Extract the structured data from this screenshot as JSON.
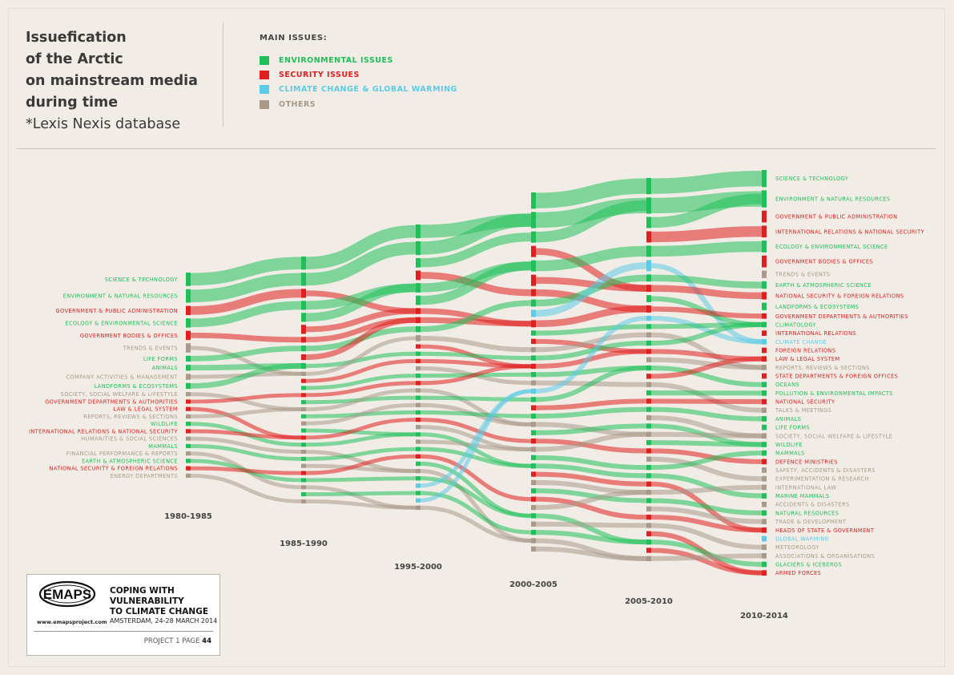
{
  "title_lines": [
    "Issuefication",
    "of the Arctic",
    "on mainstream media",
    "during time"
  ],
  "source": "*Lexis Nexis database",
  "legend": {
    "heading": "MAIN ISSUES:",
    "items": [
      {
        "label": "ENVIRONMENTAL ISSUES",
        "color": "#1fbf5a"
      },
      {
        "label": "SECURITY ISSUES",
        "color": "#e01f1f"
      },
      {
        "label": "CLIMATE CHANGE & GLOBAL WARMING",
        "color": "#5ccbe6"
      },
      {
        "label": "OTHERS",
        "color": "#a8998a"
      }
    ]
  },
  "colors": {
    "env": "#1fbf5a",
    "sec": "#e01f1f",
    "clim": "#5ccbe6",
    "oth": "#a8998a"
  },
  "chart_data": {
    "type": "alluvial",
    "periods": [
      "1980-1985",
      "1985-1990",
      "1995-2000",
      "2000-2005",
      "2005-2010",
      "2010-2014"
    ],
    "first_period_labels": [
      {
        "label": "SCIENCE & TECHNOLOGY",
        "cat": "env"
      },
      {
        "label": "ENVIRONMENT & NATURAL RESOURCES",
        "cat": "env"
      },
      {
        "label": "GOVERNMENT & PUBLIC ADMINISTRATION",
        "cat": "sec"
      },
      {
        "label": "ECOLOGY & ENVIRONMENTAL SCIENCE",
        "cat": "env"
      },
      {
        "label": "GOVERNMENT BODIES & OFFICES",
        "cat": "sec"
      },
      {
        "label": "TRENDS & EVENTS",
        "cat": "oth"
      },
      {
        "label": "LIFE FORMS",
        "cat": "env"
      },
      {
        "label": "ANIMALS",
        "cat": "env"
      },
      {
        "label": "COMPANY ACTIVITIES & MANAGEMENT",
        "cat": "oth"
      },
      {
        "label": "LANDFORMS & ECOSYSTEMS",
        "cat": "env"
      },
      {
        "label": "SOCIETY, SOCIAL WELFARE & LIFESTYLE",
        "cat": "oth"
      },
      {
        "label": "GOVERNMENT DEPARTMENTS & AUTHORITIES",
        "cat": "sec"
      },
      {
        "label": "LAW & LEGAL SYSTEM",
        "cat": "sec"
      },
      {
        "label": "REPORTS, REVIEWS & SECTIONS",
        "cat": "oth"
      },
      {
        "label": "WILDLIFE",
        "cat": "env"
      },
      {
        "label": "INTERNATIONAL RELATIONS & NATIONAL SECURITY",
        "cat": "sec"
      },
      {
        "label": "HUMANITIES & SOCIAL SCIENCES",
        "cat": "oth"
      },
      {
        "label": "MAMMALS",
        "cat": "env"
      },
      {
        "label": "FINANCIAL PERFORMANCE & REPORTS",
        "cat": "oth"
      },
      {
        "label": "EARTH & ATMOSPHERIC SCIENCE",
        "cat": "env"
      },
      {
        "label": "NATIONAL SECURITY & FOREIGN RELATIONS",
        "cat": "sec"
      },
      {
        "label": "ENERGY DEPARTMENTS",
        "cat": "oth"
      }
    ],
    "last_period_labels": [
      {
        "label": "SCIENCE & TECHNOLOGY",
        "cat": "env"
      },
      {
        "label": "ENVIRONMENT & NATURAL RESOURCES",
        "cat": "env"
      },
      {
        "label": "GOVERNMENT & PUBLIC ADMINISTRATION",
        "cat": "sec"
      },
      {
        "label": "INTERNATIONAL RELATIONS & NATIONAL SECURITY",
        "cat": "sec"
      },
      {
        "label": "ECOLOGY & ENVIRONMENTAL SCIENCE",
        "cat": "env"
      },
      {
        "label": "GOVERNMENT BODIES & OFFICES",
        "cat": "sec"
      },
      {
        "label": "TRENDS & EVENTS",
        "cat": "oth"
      },
      {
        "label": "EARTH & ATMOSPHERIC SCIENCE",
        "cat": "env"
      },
      {
        "label": "NATIONAL SECURITY & FOREIGN RELATIONS",
        "cat": "sec"
      },
      {
        "label": "LANDFORMS & ECOSYSTEMS",
        "cat": "env"
      },
      {
        "label": "GOVERNMENT DEPARTMENTS & AUTHORITIES",
        "cat": "sec"
      },
      {
        "label": "CLIMATOLOGY",
        "cat": "env"
      },
      {
        "label": "INTERNATIONAL RELATIONS",
        "cat": "sec"
      },
      {
        "label": "CLIMATE CHANGE",
        "cat": "clim"
      },
      {
        "label": "FOREIGN RELATIONS",
        "cat": "sec"
      },
      {
        "label": "LAW & LEGAL SYSTEM",
        "cat": "sec"
      },
      {
        "label": "REPORTS, REVIEWS & SECTIONS",
        "cat": "oth"
      },
      {
        "label": "STATE DEPARTMENTS & FOREIGN OFFICES",
        "cat": "sec"
      },
      {
        "label": "OCEANS",
        "cat": "env"
      },
      {
        "label": "POLLUTION & ENVIRONMENTAL IMPACTS",
        "cat": "env"
      },
      {
        "label": "NATIONAL SECURITY",
        "cat": "sec"
      },
      {
        "label": "TALKS & MEETINGS",
        "cat": "oth"
      },
      {
        "label": "ANIMALS",
        "cat": "env"
      },
      {
        "label": "LIFE FORMS",
        "cat": "env"
      },
      {
        "label": "SOCIETY, SOCIAL WELFARE & LIFESTYLE",
        "cat": "oth"
      },
      {
        "label": "WILDLIFE",
        "cat": "env"
      },
      {
        "label": "MAMMALS",
        "cat": "env"
      },
      {
        "label": "DEFENCE MINISTRIES",
        "cat": "sec"
      },
      {
        "label": "SAFETY, ACCIDENTS & DISASTERS",
        "cat": "oth"
      },
      {
        "label": "EXPERIMENTATION & RESEARCH",
        "cat": "oth"
      },
      {
        "label": "INTERNATIONAL LAW",
        "cat": "oth"
      },
      {
        "label": "MARINE MAMMALS",
        "cat": "env"
      },
      {
        "label": "ACCIDENTS & DISASTERS",
        "cat": "oth"
      },
      {
        "label": "NATURAL RESOURCES",
        "cat": "env"
      },
      {
        "label": "TRADE & DEVELOPMENT",
        "cat": "oth"
      },
      {
        "label": "HEADS OF STATE & GOVERNMENT",
        "cat": "sec"
      },
      {
        "label": "GLOBAL WARMING",
        "cat": "clim"
      },
      {
        "label": "METEOROLOGY",
        "cat": "oth"
      },
      {
        "label": "ASSOCIATIONS & ORGANISATIONS",
        "cat": "oth"
      },
      {
        "label": "GLACIERS & ICEBERGS",
        "cat": "env"
      },
      {
        "label": "ARMED FORCES",
        "cat": "sec"
      }
    ],
    "middle_columns": [
      [
        "env",
        "env",
        "sec",
        "env",
        "env",
        "sec",
        "sec",
        "env",
        "sec",
        "env",
        "oth",
        "sec",
        "env",
        "sec",
        "env",
        "oth",
        "env",
        "oth",
        "env",
        "sec",
        "env",
        "oth",
        "env",
        "oth",
        "sec",
        "env",
        "oth",
        "env",
        "oth"
      ],
      [
        "env",
        "env",
        "env",
        "sec",
        "env",
        "env",
        "sec",
        "sec",
        "env",
        "oth",
        "sec",
        "env",
        "sec",
        "oth",
        "env",
        "sec",
        "oth",
        "env",
        "oth",
        "env",
        "sec",
        "oth",
        "env",
        "oth",
        "env",
        "sec",
        "env",
        "oth",
        "env",
        "clim",
        "env",
        "clim",
        "oth"
      ],
      [
        "env",
        "env",
        "env",
        "sec",
        "env",
        "sec",
        "sec",
        "env",
        "clim",
        "sec",
        "env",
        "sec",
        "oth",
        "env",
        "sec",
        "env",
        "oth",
        "clim",
        "env",
        "sec",
        "env",
        "oth",
        "env",
        "sec",
        "oth",
        "env",
        "env",
        "sec",
        "oth",
        "env",
        "sec",
        "oth",
        "env",
        "oth",
        "env",
        "oth",
        "oth"
      ],
      [
        "env",
        "env",
        "env",
        "sec",
        "env",
        "clim",
        "env",
        "sec",
        "env",
        "sec",
        "clim",
        "env",
        "oth",
        "env",
        "sec",
        "oth",
        "env",
        "sec",
        "oth",
        "env",
        "sec",
        "env",
        "oth",
        "env",
        "oth",
        "env",
        "sec",
        "oth",
        "env",
        "env",
        "sec",
        "oth",
        "env",
        "oth",
        "sec",
        "oth",
        "sec",
        "env",
        "sec",
        "oth"
      ]
    ]
  },
  "logo": {
    "brand": "EMAPS",
    "url": "www.emapsproject.com",
    "heading_lines": [
      "COPING WITH",
      "VULNERABILITY",
      "TO CLIMATE CHANGE"
    ],
    "subtitle": "AMSTERDAM, 24-28 MARCH 2014",
    "page_prefix": "PROJECT 1 PAGE",
    "page_number": "44"
  }
}
